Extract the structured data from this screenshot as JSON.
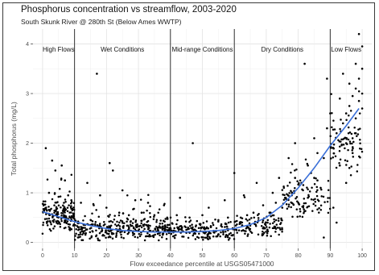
{
  "chart_data": {
    "type": "scatter",
    "title": "Phosphorus concentration vs streamflow, 2003-2020",
    "subtitle": "South Skunk River @ 280th St (Below Ames WWTP)",
    "xlabel": "Flow exceedance percentile at USGS05471000",
    "ylabel": "Total phosphorus (mg/L)",
    "xlim": [
      -3,
      103
    ],
    "ylim": [
      -0.12,
      4.3
    ],
    "xticks": [
      0,
      10,
      20,
      30,
      40,
      50,
      60,
      70,
      80,
      90,
      100
    ],
    "yticks": [
      0,
      1,
      2,
      3,
      4
    ],
    "grid": true,
    "zone_boundaries": [
      10,
      40,
      60,
      90
    ],
    "zones": [
      {
        "label": "High Flows",
        "from": 0,
        "to": 10
      },
      {
        "label": "Wet Conditions",
        "from": 10,
        "to": 40
      },
      {
        "label": "Mid-range Conditions",
        "from": 40,
        "to": 60
      },
      {
        "label": "Dry Conditions",
        "from": 60,
        "to": 90
      },
      {
        "label": "Low Flows",
        "from": 90,
        "to": 100
      }
    ],
    "trend": {
      "x": [
        0,
        5,
        10,
        15,
        20,
        25,
        30,
        35,
        40,
        45,
        50,
        55,
        60,
        65,
        70,
        75,
        80,
        85,
        90,
        95,
        99
      ],
      "y": [
        0.62,
        0.52,
        0.42,
        0.34,
        0.28,
        0.24,
        0.22,
        0.21,
        0.21,
        0.21,
        0.22,
        0.24,
        0.28,
        0.36,
        0.5,
        0.75,
        1.1,
        1.5,
        1.95,
        2.35,
        2.7
      ]
    },
    "points": [
      [
        1,
        1.9
      ],
      [
        3,
        1.65
      ],
      [
        4,
        1.45
      ],
      [
        6,
        1.55
      ],
      [
        7,
        1.25
      ],
      [
        2,
        1.0
      ],
      [
        8,
        0.95
      ],
      [
        5,
        0.92
      ],
      [
        17,
        3.4
      ],
      [
        21,
        1.6
      ],
      [
        22,
        1.45
      ],
      [
        14,
        1.2
      ],
      [
        18,
        0.95
      ],
      [
        25,
        1.05
      ],
      [
        29,
        0.85
      ],
      [
        33,
        0.8
      ],
      [
        38,
        0.75
      ],
      [
        43,
        0.9
      ],
      [
        47,
        2.0
      ],
      [
        52,
        0.7
      ],
      [
        57,
        0.85
      ],
      [
        60,
        1.4
      ],
      [
        63,
        0.95
      ],
      [
        67,
        1.2
      ],
      [
        72,
        1.0
      ],
      [
        74,
        1.3
      ],
      [
        77,
        1.7
      ],
      [
        79,
        2.0
      ],
      [
        82,
        3.6
      ],
      [
        83,
        1.55
      ],
      [
        85,
        2.1
      ],
      [
        86,
        1.25
      ],
      [
        88,
        0.1
      ],
      [
        89,
        3.3
      ],
      [
        91,
        0.7
      ],
      [
        92,
        0.4
      ],
      [
        93,
        1.55
      ],
      [
        94,
        3.4
      ],
      [
        95,
        2.6
      ],
      [
        96,
        3.2
      ],
      [
        97,
        2.1
      ],
      [
        98,
        3.6
      ],
      [
        99,
        4.2
      ],
      [
        100,
        3.95
      ],
      [
        100,
        3.0
      ],
      [
        99,
        2.85
      ],
      [
        98,
        2.5
      ],
      [
        97,
        1.8
      ],
      [
        96,
        1.5
      ],
      [
        95,
        1.2
      ],
      [
        94,
        2.4
      ],
      [
        93,
        2.9
      ],
      [
        92,
        2.2
      ],
      [
        91,
        1.9
      ],
      [
        90,
        2.6
      ],
      [
        89,
        2.3
      ],
      [
        88,
        1.7
      ],
      [
        87,
        1.1
      ],
      [
        86,
        1.8
      ],
      [
        85,
        1.3
      ],
      [
        84,
        1.4
      ],
      [
        83,
        0.9
      ],
      [
        81,
        1.2
      ],
      [
        80,
        0.8
      ],
      [
        79,
        1.3
      ],
      [
        78,
        1.0
      ],
      [
        76,
        0.9
      ],
      [
        75,
        0.7
      ],
      [
        73,
        0.8
      ],
      [
        71,
        0.6
      ],
      [
        69,
        0.75
      ],
      [
        66,
        0.6
      ],
      [
        64,
        0.55
      ],
      [
        62,
        0.5
      ],
      [
        58,
        0.5
      ],
      [
        55,
        0.45
      ],
      [
        50,
        0.55
      ],
      [
        46,
        0.5
      ],
      [
        42,
        0.55
      ],
      [
        39,
        0.5
      ],
      [
        35,
        0.55
      ],
      [
        31,
        0.6
      ],
      [
        27,
        0.55
      ],
      [
        24,
        0.6
      ],
      [
        20,
        0.7
      ],
      [
        16,
        0.75
      ],
      [
        12,
        0.8
      ],
      [
        9,
        0.85
      ],
      [
        100,
        3.5
      ],
      [
        99,
        3.3
      ],
      [
        98,
        3.1
      ],
      [
        97,
        2.95
      ],
      [
        96,
        2.75
      ],
      [
        100,
        2.7
      ],
      [
        98,
        2.2
      ],
      [
        95,
        2.0
      ]
    ],
    "cloud": [
      {
        "x0": 0,
        "x1": 10,
        "center": 0.55,
        "spread": 0.42,
        "n": 170
      },
      {
        "x0": 10,
        "x1": 40,
        "center": 0.27,
        "spread": 0.32,
        "n": 330
      },
      {
        "x0": 40,
        "x1": 60,
        "center": 0.23,
        "spread": 0.27,
        "n": 170
      },
      {
        "x0": 60,
        "x1": 75,
        "center": 0.33,
        "spread": 0.33,
        "n": 120
      },
      {
        "x0": 75,
        "x1": 90,
        "center": 0.85,
        "spread": 0.5,
        "n": 110
      },
      {
        "x0": 90,
        "x1": 100,
        "center": 2.0,
        "spread": 0.85,
        "n": 80
      }
    ]
  }
}
